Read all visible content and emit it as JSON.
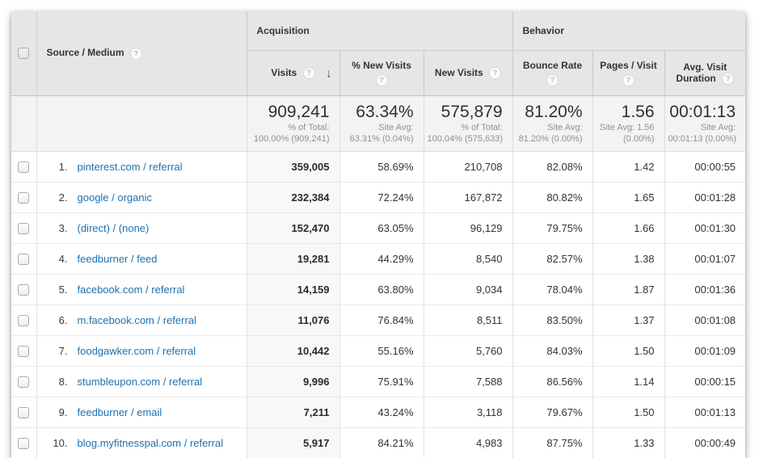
{
  "colors": {
    "link": "#1d71ae",
    "header_bg": "#e6e6e6",
    "summary_bg": "#f3f3f3",
    "visits_col_bg": "#f8f8f8"
  },
  "table": {
    "help_glyph": "?",
    "sort_arrow": "↓",
    "groups": {
      "acquisition": "Acquisition",
      "behavior": "Behavior"
    },
    "columns": {
      "source": "Source / Medium",
      "visits": "Visits",
      "pct_new_visits": "% New Visits",
      "new_visits": "New Visits",
      "bounce_rate": "Bounce Rate",
      "pages_visit": "Pages / Visit",
      "avg_duration": "Avg. Visit Duration"
    },
    "summary": {
      "visits": {
        "value": "909,241",
        "line1": "% of Total:",
        "line2": "100.00% (909,241)"
      },
      "pct_new_visits": {
        "value": "63.34%",
        "line1": "Site Avg:",
        "line2": "63.31% (0.04%)"
      },
      "new_visits": {
        "value": "575,879",
        "line1": "% of Total:",
        "line2": "100.04% (575,633)"
      },
      "bounce_rate": {
        "value": "81.20%",
        "line1": "Site Avg:",
        "line2": "81.20% (0.00%)"
      },
      "pages_visit": {
        "value": "1.56",
        "line1": "Site Avg: 1.56",
        "line2": "(0.00%)"
      },
      "avg_duration": {
        "value": "00:01:13",
        "line1": "Site Avg:",
        "line2": "00:01:13 (0.00%)"
      }
    },
    "rows": [
      {
        "rank": "1.",
        "source": "pinterest.com / referral",
        "visits": "359,005",
        "pct_new": "58.69%",
        "new_visits": "210,708",
        "bounce": "82.08%",
        "pages": "1.42",
        "duration": "00:00:55"
      },
      {
        "rank": "2.",
        "source": "google / organic",
        "visits": "232,384",
        "pct_new": "72.24%",
        "new_visits": "167,872",
        "bounce": "80.82%",
        "pages": "1.65",
        "duration": "00:01:28"
      },
      {
        "rank": "3.",
        "source": "(direct) / (none)",
        "visits": "152,470",
        "pct_new": "63.05%",
        "new_visits": "96,129",
        "bounce": "79.75%",
        "pages": "1.66",
        "duration": "00:01:30"
      },
      {
        "rank": "4.",
        "source": "feedburner / feed",
        "visits": "19,281",
        "pct_new": "44.29%",
        "new_visits": "8,540",
        "bounce": "82.57%",
        "pages": "1.38",
        "duration": "00:01:07"
      },
      {
        "rank": "5.",
        "source": "facebook.com / referral",
        "visits": "14,159",
        "pct_new": "63.80%",
        "new_visits": "9,034",
        "bounce": "78.04%",
        "pages": "1.87",
        "duration": "00:01:36"
      },
      {
        "rank": "6.",
        "source": "m.facebook.com / referral",
        "visits": "11,076",
        "pct_new": "76.84%",
        "new_visits": "8,511",
        "bounce": "83.50%",
        "pages": "1.37",
        "duration": "00:01:08"
      },
      {
        "rank": "7.",
        "source": "foodgawker.com / referral",
        "visits": "10,442",
        "pct_new": "55.16%",
        "new_visits": "5,760",
        "bounce": "84.03%",
        "pages": "1.50",
        "duration": "00:01:09"
      },
      {
        "rank": "8.",
        "source": "stumbleupon.com / referral",
        "visits": "9,996",
        "pct_new": "75.91%",
        "new_visits": "7,588",
        "bounce": "86.56%",
        "pages": "1.14",
        "duration": "00:00:15"
      },
      {
        "rank": "9.",
        "source": "feedburner / email",
        "visits": "7,211",
        "pct_new": "43.24%",
        "new_visits": "3,118",
        "bounce": "79.67%",
        "pages": "1.50",
        "duration": "00:01:13"
      },
      {
        "rank": "10.",
        "source": "blog.myfitnesspal.com / referral",
        "visits": "5,917",
        "pct_new": "84.21%",
        "new_visits": "4,983",
        "bounce": "87.75%",
        "pages": "1.33",
        "duration": "00:00:49"
      }
    ]
  }
}
